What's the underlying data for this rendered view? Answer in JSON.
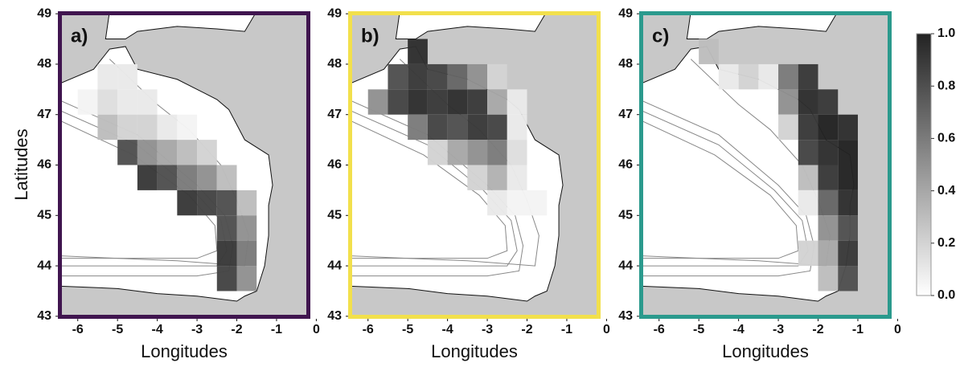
{
  "y_label": "Latitudes",
  "panels": [
    {
      "label": "a)",
      "frame_color": "#40154f",
      "x_label": "Longitudes",
      "xlim": [
        -6.5,
        -0.15
      ],
      "ylim": [
        42.95,
        49.05
      ],
      "xticks": [
        -6,
        -5,
        -4,
        -3,
        -2,
        -1,
        0
      ],
      "yticks": [
        43,
        44,
        45,
        46,
        47,
        48,
        49
      ],
      "cells": [
        [
          -5.5,
          47.5,
          0.1
        ],
        [
          -5,
          47.5,
          0.1
        ],
        [
          -6,
          47,
          0.05
        ],
        [
          -5.5,
          47,
          0.15
        ],
        [
          -5,
          47,
          0.1
        ],
        [
          -4.5,
          47,
          0.1
        ],
        [
          -5.5,
          46.5,
          0.3
        ],
        [
          -5,
          46.5,
          0.2
        ],
        [
          -4.5,
          46.5,
          0.2
        ],
        [
          -4,
          46.5,
          0.1
        ],
        [
          -3.5,
          46.5,
          0.05
        ],
        [
          -5,
          46,
          0.8
        ],
        [
          -4.5,
          46,
          0.5
        ],
        [
          -4,
          46,
          0.4
        ],
        [
          -3.5,
          46,
          0.3
        ],
        [
          -3,
          46,
          0.2
        ],
        [
          -4.5,
          45.5,
          0.9
        ],
        [
          -4,
          45.5,
          0.8
        ],
        [
          -3.5,
          45.5,
          0.6
        ],
        [
          -3,
          45.5,
          0.5
        ],
        [
          -2.5,
          45.5,
          0.3
        ],
        [
          -3.5,
          45,
          0.9
        ],
        [
          -3,
          45,
          0.85
        ],
        [
          -2.5,
          45,
          0.8
        ],
        [
          -2,
          45,
          0.3
        ],
        [
          -2.5,
          44.5,
          0.8
        ],
        [
          -2,
          44.5,
          0.5
        ],
        [
          -2.5,
          44,
          0.9
        ],
        [
          -2,
          44,
          0.6
        ],
        [
          -2.5,
          43.5,
          0.85
        ],
        [
          -2,
          43.5,
          0.5
        ]
      ]
    },
    {
      "label": "b)",
      "frame_color": "#f2e04c",
      "x_label": "Longitudes",
      "xlim": [
        -6.5,
        -0.15
      ],
      "ylim": [
        42.95,
        49.05
      ],
      "xticks": [
        -6,
        -5,
        -4,
        -3,
        -2,
        -1,
        0
      ],
      "yticks": [
        43,
        44,
        45,
        46,
        47,
        48,
        49
      ],
      "cells": [
        [
          -5,
          48,
          0.95
        ],
        [
          -5.5,
          47.5,
          0.8
        ],
        [
          -5,
          47.5,
          0.9
        ],
        [
          -4.5,
          47.5,
          0.85
        ],
        [
          -4,
          47.5,
          0.7
        ],
        [
          -3.5,
          47.5,
          0.5
        ],
        [
          -3,
          47.5,
          0.2
        ],
        [
          -6,
          47,
          0.5
        ],
        [
          -5.5,
          47,
          0.85
        ],
        [
          -5,
          47,
          0.95
        ],
        [
          -4.5,
          47,
          0.9
        ],
        [
          -4,
          47,
          0.95
        ],
        [
          -3.5,
          47,
          0.9
        ],
        [
          -3,
          47,
          0.4
        ],
        [
          -2.5,
          47,
          0.1
        ],
        [
          -5,
          46.5,
          0.6
        ],
        [
          -4.5,
          46.5,
          0.85
        ],
        [
          -4,
          46.5,
          0.8
        ],
        [
          -3.5,
          46.5,
          0.9
        ],
        [
          -3,
          46.5,
          0.85
        ],
        [
          -2.5,
          46.5,
          0.1
        ],
        [
          -4.5,
          46,
          0.2
        ],
        [
          -4,
          46,
          0.4
        ],
        [
          -3.5,
          46,
          0.5
        ],
        [
          -3,
          46,
          0.6
        ],
        [
          -2.5,
          46,
          0.15
        ],
        [
          -3.5,
          45.5,
          0.2
        ],
        [
          -3,
          45.5,
          0.35
        ],
        [
          -2.5,
          45.5,
          0.1
        ],
        [
          -3,
          45,
          0.1
        ],
        [
          -2.5,
          45,
          0.05
        ],
        [
          -2,
          45,
          0.05
        ]
      ]
    },
    {
      "label": "c)",
      "frame_color": "#2b9a8d",
      "x_label": "Longitudes",
      "xlim": [
        -6.5,
        -0.15
      ],
      "ylim": [
        42.95,
        49.05
      ],
      "xticks": [
        -6,
        -5,
        -4,
        -3,
        -2,
        -1,
        0
      ],
      "yticks": [
        43,
        44,
        45,
        46,
        47,
        48,
        49
      ],
      "cells": [
        [
          -5,
          48,
          0.3
        ],
        [
          -4.5,
          47.5,
          0.1
        ],
        [
          -4,
          47.5,
          0.2
        ],
        [
          -3.5,
          47.5,
          0.1
        ],
        [
          -3,
          47.5,
          0.6
        ],
        [
          -2.5,
          47.5,
          0.9
        ],
        [
          -3,
          47,
          0.5
        ],
        [
          -2.5,
          47,
          0.95
        ],
        [
          -2,
          47,
          0.9
        ],
        [
          -3,
          46.5,
          0.2
        ],
        [
          -2.5,
          46.5,
          0.9
        ],
        [
          -2,
          46.5,
          1.0
        ],
        [
          -1.5,
          46.5,
          0.95
        ],
        [
          -2.5,
          46,
          0.85
        ],
        [
          -2,
          46,
          0.95
        ],
        [
          -1.5,
          46,
          1.0
        ],
        [
          -2.5,
          45.5,
          0.3
        ],
        [
          -2,
          45.5,
          0.9
        ],
        [
          -1.5,
          45.5,
          1.0
        ],
        [
          -2.5,
          45,
          0.1
        ],
        [
          -2,
          45,
          0.7
        ],
        [
          -1.5,
          45,
          0.95
        ],
        [
          -2,
          44.5,
          0.5
        ],
        [
          -1.5,
          44.5,
          0.8
        ],
        [
          -2.5,
          44,
          0.2
        ],
        [
          -2,
          44,
          0.4
        ],
        [
          -1.5,
          44,
          0.9
        ],
        [
          -2,
          43.5,
          0.3
        ],
        [
          -1.5,
          43.5,
          0.8
        ]
      ]
    }
  ],
  "colorbar": {
    "lim": [
      0,
      1
    ],
    "ticks": [
      {
        "value": 0,
        "label": "0.0"
      },
      {
        "value": 0.2,
        "label": "0.2"
      },
      {
        "value": 0.4,
        "label": "0.4"
      },
      {
        "value": 0.6,
        "label": "0.6"
      },
      {
        "value": 0.8,
        "label": "0.8"
      },
      {
        "value": 1,
        "label": "1.0"
      }
    ]
  }
}
